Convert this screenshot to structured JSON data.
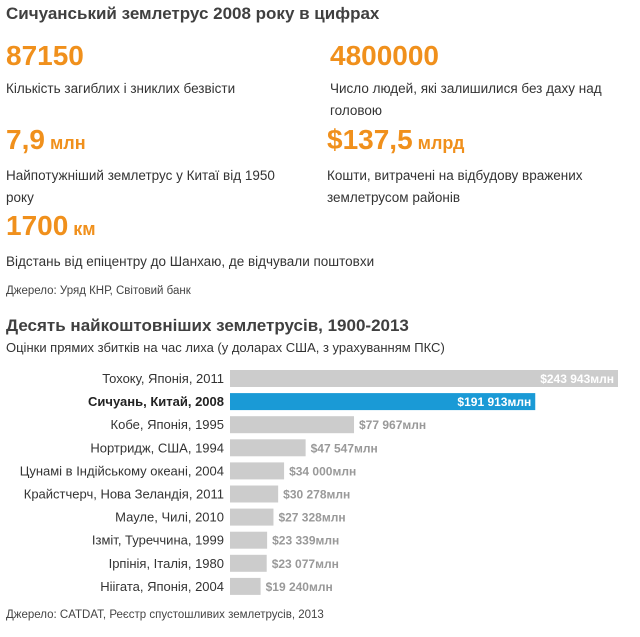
{
  "header": {
    "title": "Сичуанський землетрус 2008 року в цифрах"
  },
  "stats": [
    {
      "value": "87150",
      "unit": "",
      "description": "Кількість загиблих і зниклих безвісти"
    },
    {
      "value": "4800000",
      "unit": "",
      "description": "Число людей, які залишилися без даху над головою"
    },
    {
      "value": "7,9",
      "unit": "млн",
      "description": "Найпотужніший землетрус у Китаї від 1950 року"
    },
    {
      "value": "$137,5",
      "unit": "млрд",
      "description": "Кошти, витрачені на відбудову вражених землетрусом районів"
    },
    {
      "value": "1700",
      "unit": "км",
      "description": "Відстань від епіцентру до Шанхаю, де відчували поштовхи"
    }
  ],
  "stats_source": "Джерело: Уряд КНР, Світовий банк",
  "chart_source": "Джерело: CATDAT, Реєстр спустошливих землетрусів, 2013",
  "colors": {
    "accent": "#f0901c",
    "bar": "#cccccc",
    "highlight": "#1a9ad6"
  },
  "chart_data": {
    "type": "bar",
    "orientation": "horizontal",
    "title": "Десять найкоштовніших землетрусів, 1900-2013",
    "subtitle": "Оцінки прямих збитків на час лиха (у доларах США, з урахуванням ПКС)",
    "categories": [
      "Тохоку, Японія, 2011",
      "Сичуань, Китай, 2008",
      "Кобе, Японія, 1995",
      "Нортридж, США, 1994",
      "Цунамі в Індійському океані, 2004",
      "Крайстчерч, Нова Зеландія, 2011",
      "Мауле, Чилі, 2010",
      "Ізміт, Туреччина, 1999",
      "Ірпінія, Італія, 1980",
      "Ніігата, Японія, 2004"
    ],
    "values": [
      243943,
      191913,
      77967,
      47547,
      34000,
      30278,
      27328,
      23339,
      23077,
      19240
    ],
    "value_labels": [
      "$243 943млн",
      "$191 913млн",
      "$77 967млн",
      "$47 547млн",
      "$34 000млн",
      "$30 278млн",
      "$27 328млн",
      "$23 339млн",
      "$23 077млн",
      "$19 240млн"
    ],
    "highlight_index": 1,
    "unit": "млн доларів США"
  }
}
